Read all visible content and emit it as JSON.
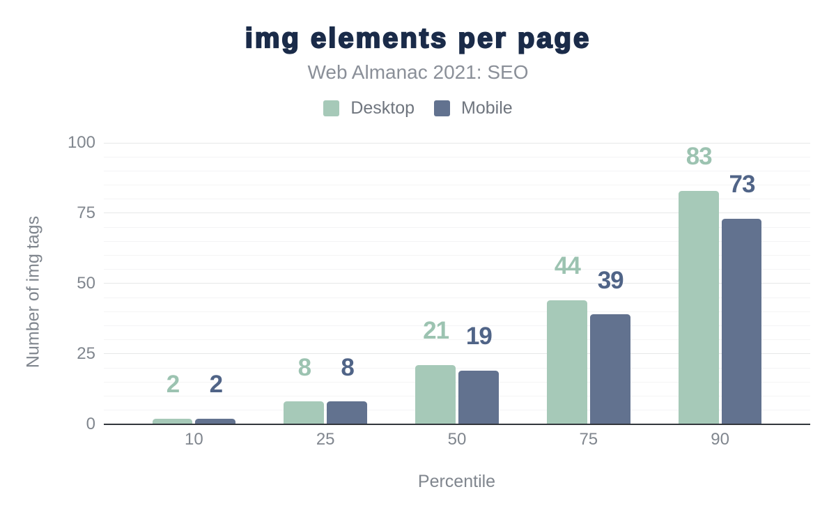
{
  "chart_data": {
    "type": "bar",
    "title": "img elements per page",
    "subtitle": "Web Almanac 2021: SEO",
    "xlabel": "Percentile",
    "ylabel": "Number of img tags",
    "categories": [
      "10",
      "25",
      "50",
      "75",
      "90"
    ],
    "series": [
      {
        "name": "Desktop",
        "values": [
          2,
          8,
          21,
          44,
          83
        ],
        "label_color": "#9cc3b1",
        "bar_color": "#a6c9b8"
      },
      {
        "name": "Mobile",
        "values": [
          2,
          8,
          19,
          39,
          73
        ],
        "label_color": "#506487",
        "bar_color": "#62728f"
      }
    ],
    "ylim": [
      0,
      100
    ],
    "yticks": [
      0,
      25,
      50,
      75,
      100
    ],
    "minor_tick_step": 5,
    "grid": "on",
    "legend_position": "top",
    "colors": {
      "title": "#1a2b49",
      "subtitle": "#8a8f98",
      "legend_text": "#6f757e",
      "tick_label": "#80868e",
      "axis_title": "#80868e",
      "axis_line": "#32363b",
      "major_gridline": "#e6e7e8",
      "minor_gridline": "#f4f4f5",
      "background": "#ffffff"
    }
  }
}
